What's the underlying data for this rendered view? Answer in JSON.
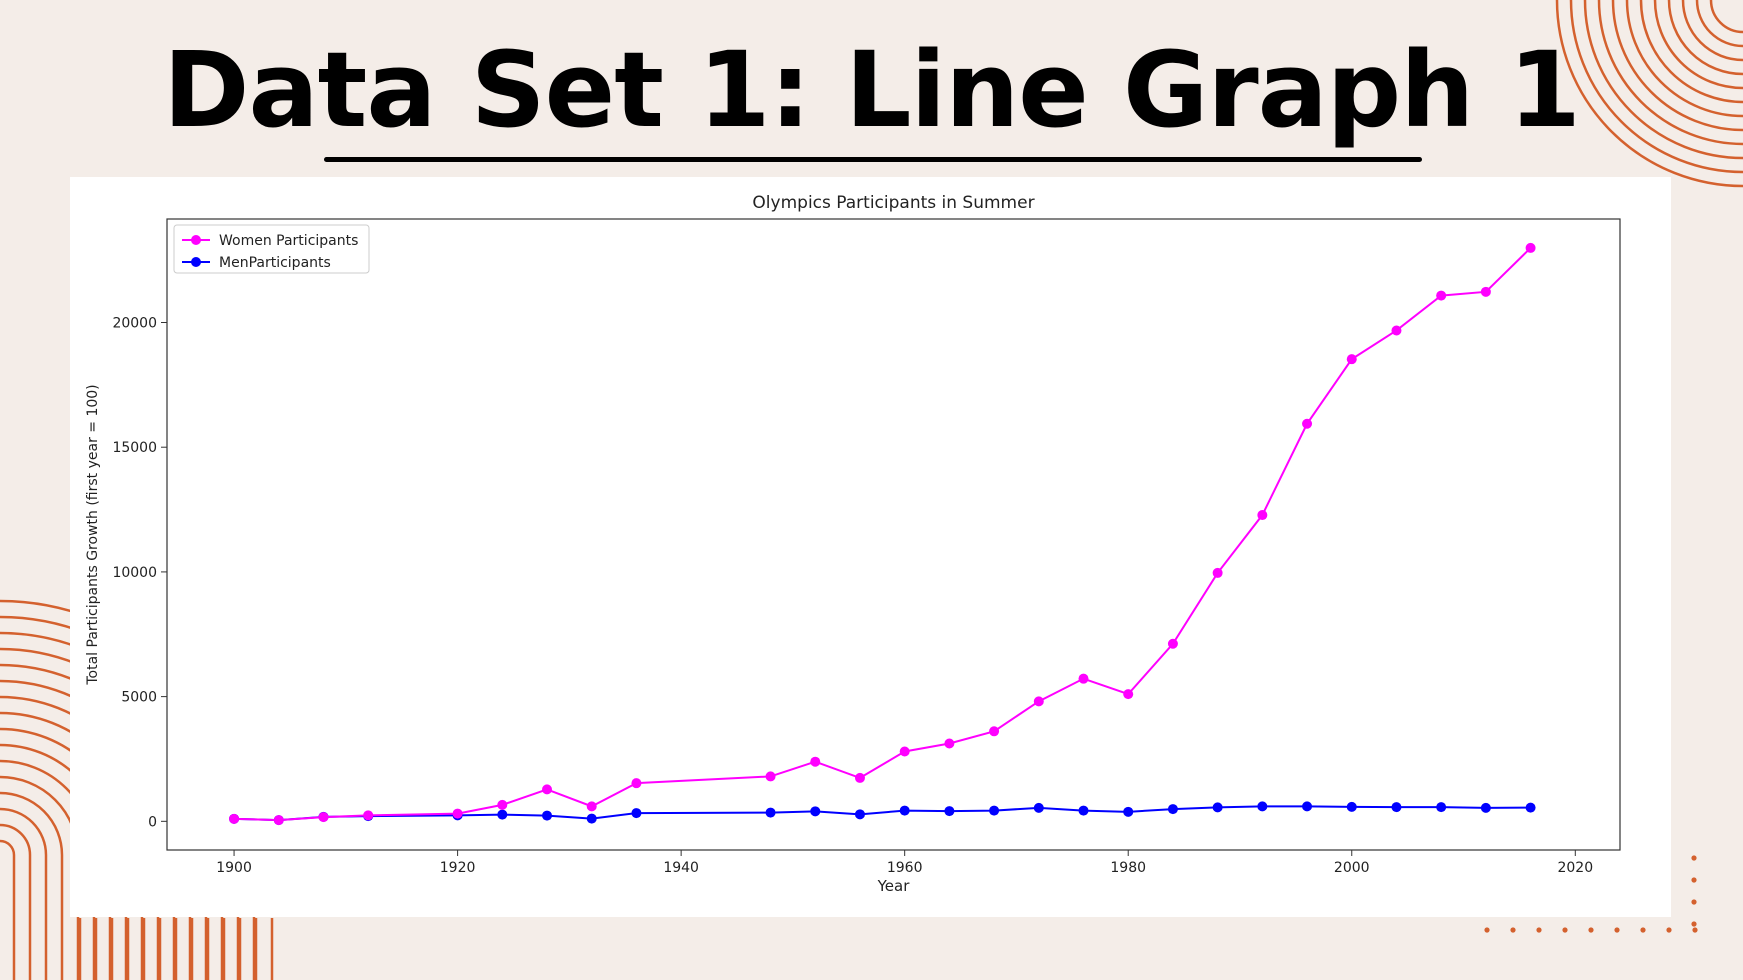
{
  "slide": {
    "title": "Data Set 1: Line Graph 1"
  },
  "colors": {
    "background": "#f4ede8",
    "accent": "#d4612e",
    "women": "#ff00ff",
    "men": "#0000ff"
  },
  "chart_data": {
    "type": "line",
    "title": "Olympics Participants in Summer",
    "xlabel": "Year",
    "ylabel": "Total Participants Growth (first year = 100)",
    "xlim": [
      1894,
      2024
    ],
    "ylim": [
      -1150,
      24150
    ],
    "xticks": [
      1900,
      1920,
      1940,
      1960,
      1980,
      2000,
      2020
    ],
    "yticks": [
      0,
      5000,
      10000,
      15000,
      20000
    ],
    "grid": false,
    "legend": "top-left",
    "x": [
      1900,
      1904,
      1908,
      1912,
      1920,
      1924,
      1928,
      1932,
      1936,
      1948,
      1952,
      1956,
      1960,
      1964,
      1968,
      1972,
      1976,
      1980,
      1984,
      1988,
      1992,
      1996,
      2000,
      2004,
      2008,
      2012,
      2016
    ],
    "series": [
      {
        "name": "Women Participants",
        "color": "#ff00ff",
        "values": [
          100,
          50,
          170,
          240,
          310,
          660,
          1280,
          600,
          1530,
          1800,
          2390,
          1740,
          2800,
          3120,
          3610,
          4810,
          5720,
          5100,
          7120,
          9960,
          12280,
          15940,
          18530,
          19680,
          21080,
          21230,
          22990
        ]
      },
      {
        "name": "MenParticipants",
        "color": "#0000ff",
        "values": [
          100,
          50,
          180,
          210,
          240,
          270,
          230,
          110,
          330,
          350,
          400,
          280,
          430,
          410,
          430,
          540,
          430,
          380,
          490,
          560,
          600,
          600,
          580,
          570,
          570,
          540,
          550
        ]
      }
    ]
  }
}
